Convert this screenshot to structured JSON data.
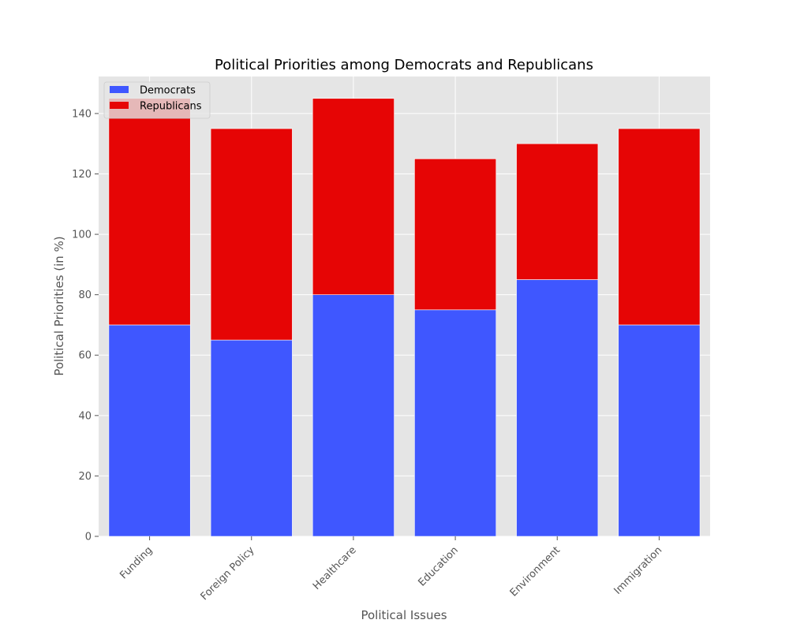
{
  "chart_data": {
    "type": "bar",
    "stacked": true,
    "title": "Political Priorities among Democrats and Republicans",
    "xlabel": "Political Issues",
    "ylabel": "Political Priorities (in %)",
    "categories": [
      "Funding",
      "Foreign Policy",
      "Healthcare",
      "Education",
      "Environment",
      "Immigration"
    ],
    "series": [
      {
        "name": "Democrats",
        "values": [
          70,
          65,
          80,
          75,
          85,
          70
        ],
        "color": "#3f57ff"
      },
      {
        "name": "Republicans",
        "values": [
          75,
          70,
          65,
          50,
          45,
          65
        ],
        "color": "#e60505"
      }
    ],
    "ylim": [
      0,
      152.25
    ],
    "yticks": [
      0,
      20,
      40,
      60,
      80,
      100,
      120,
      140
    ],
    "grid": true,
    "legend_position": "top-left",
    "style": {
      "plot_background": "#e5e5e5",
      "grid_color": "#ffffff",
      "text_color": "#555555"
    }
  }
}
